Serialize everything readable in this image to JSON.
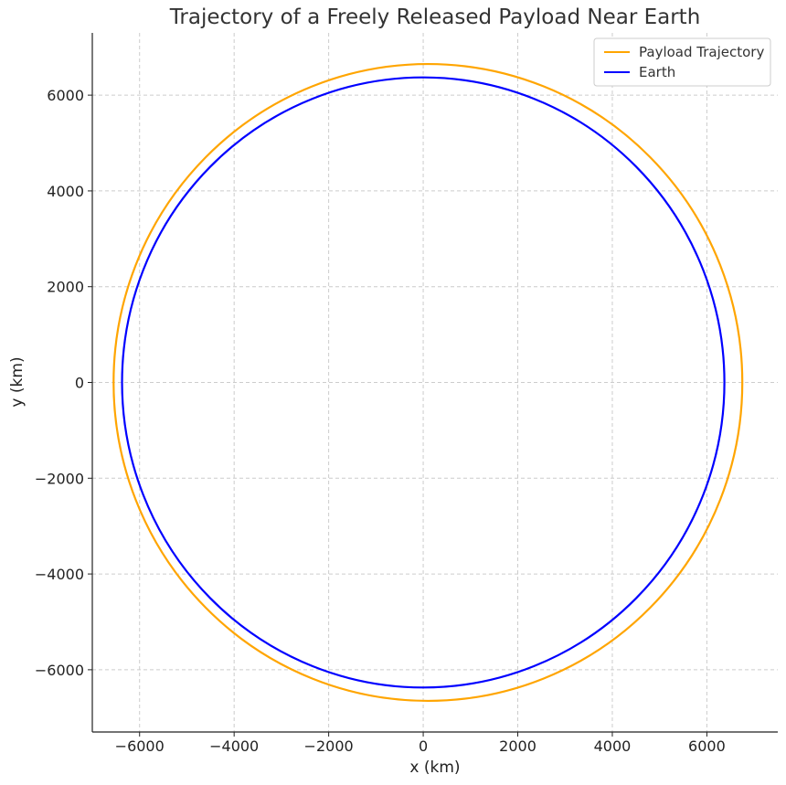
{
  "chart_data": {
    "type": "line",
    "title": "Trajectory of a Freely Released Payload Near Earth",
    "xlabel": "x (km)",
    "ylabel": "y (km)",
    "xlim": [
      -7000,
      7500
    ],
    "ylim": [
      -7300,
      7300
    ],
    "xticks": [
      -6000,
      -4000,
      -2000,
      0,
      2000,
      4000,
      6000
    ],
    "yticks": [
      -6000,
      -4000,
      -2000,
      0,
      2000,
      4000,
      6000
    ],
    "xtick_labels": [
      "−6000",
      "−4000",
      "−2000",
      "0",
      "2000",
      "4000",
      "6000"
    ],
    "ytick_labels": [
      "−6000",
      "−4000",
      "−2000",
      "0",
      "2000",
      "4000",
      "6000"
    ],
    "grid": true,
    "legend_position": "top-right",
    "series": [
      {
        "name": "Payload Trajectory",
        "color": "#FFA500",
        "shape": "ellipse",
        "center": [
          100,
          0
        ],
        "radius_x": 6650,
        "radius_y": 6650,
        "x": [
          6750,
          4800,
          100,
          -4600,
          -6550,
          -4600,
          100,
          4800,
          6750
        ],
        "y": [
          0,
          4700,
          6650,
          4700,
          0,
          -4700,
          -6650,
          -4700,
          0
        ]
      },
      {
        "name": "Earth",
        "color": "#0000FF",
        "shape": "circle",
        "center": [
          0,
          0
        ],
        "radius_x": 6371,
        "radius_y": 6371,
        "x": [
          6371,
          4505,
          0,
          -4505,
          -6371,
          -4505,
          0,
          4505,
          6371
        ],
        "y": [
          0,
          4505,
          6371,
          4505,
          0,
          -4505,
          -6371,
          -4505,
          0
        ]
      }
    ]
  }
}
